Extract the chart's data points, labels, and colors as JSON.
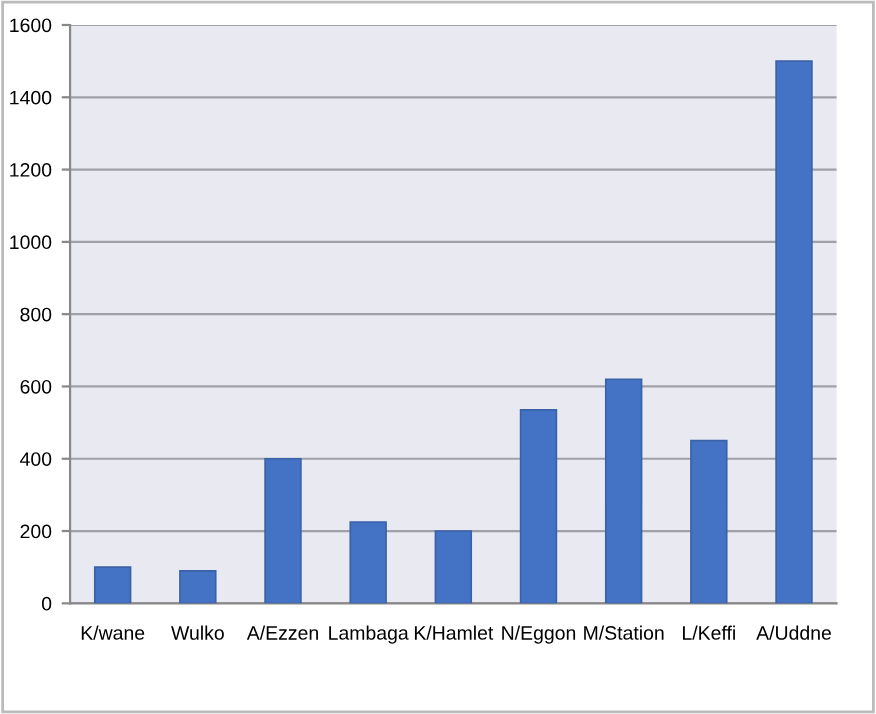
{
  "chart_data": {
    "type": "bar",
    "categories": [
      "K/wane",
      "Wulko",
      "A/Ezzen",
      "Lambaga",
      "K/Hamlet",
      "N/Eggon",
      "M/Station",
      "L/Keffi",
      "A/Uddne"
    ],
    "values": [
      100,
      90,
      400,
      225,
      200,
      535,
      620,
      450,
      1500
    ],
    "color": "#4472c4",
    "ylim": [
      0,
      1600
    ],
    "yticks": [
      0,
      200,
      400,
      600,
      800,
      1000,
      1200,
      1400,
      1600
    ],
    "grid": "y",
    "legend": false
  }
}
